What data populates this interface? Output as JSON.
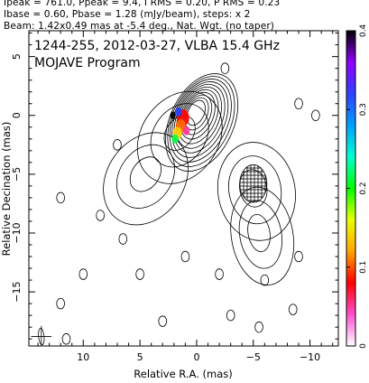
{
  "header": {
    "line1": "Ipeak = 761.0, Ppeak = 9.4, I RMS = 0.20, P RMS = 0.23",
    "line2": "Ibase = 0.60, Pbase = 1.28 (mJy/beam), steps: x 2",
    "line3": "Beam: 1.42x0.49 mas at -5.4 deg., Nat. Wgt. (no taper)"
  },
  "chart_data": {
    "type": "heatmap",
    "title": "1244-255, 2012-03-27, VLBA 15.4 GHz",
    "subtitle": "MOJAVE Program",
    "xlabel": "Relative R.A. (mas)",
    "ylabel": "Relative Decination (mas)",
    "xlim": [
      14.8,
      -12.5
    ],
    "ylim": [
      -19.6,
      7.2
    ],
    "x_ticks": [
      10,
      5,
      0,
      -5,
      -10
    ],
    "x_tick_labels": [
      "10",
      "5",
      "0",
      "−5",
      "−10"
    ],
    "y_ticks": [
      5,
      0,
      -5,
      -10,
      -15
    ],
    "y_tick_labels": [
      "5",
      "0",
      "−5",
      "−10",
      "−15"
    ],
    "colorbar": {
      "min": 0,
      "max": 0.4,
      "ticks": [
        0,
        0.1,
        0.2,
        0.3,
        0.4
      ],
      "tick_labels": [
        "0",
        "0.1",
        "0.2",
        "0.3",
        "0.4"
      ],
      "colors": [
        "#ffffff",
        "#ff4fd0",
        "#ff0000",
        "#ffa500",
        "#e8ff00",
        "#00ff00",
        "#00ffd0",
        "#00a0ff",
        "#3040ff",
        "#9000ff",
        "#000000"
      ]
    },
    "core": {
      "x": 0.1,
      "y": 0.3,
      "peak_mJy_per_beam": 761.0
    },
    "jet_components": [
      {
        "x": 1.5,
        "y": -1.5
      },
      {
        "x": 4.5,
        "y": -5.0
      },
      {
        "x": -5.0,
        "y": -6.2
      },
      {
        "x": -5.5,
        "y": -10.0
      }
    ],
    "beam": {
      "major_mas": 1.42,
      "minor_mas": 0.49,
      "pa_deg": -5.4,
      "x": 13.7,
      "y": -18.8
    },
    "contours": {
      "base_mJy_per_beam": 0.6,
      "step_factor": 2,
      "core_levels": [
        1,
        2,
        4,
        8,
        16,
        32,
        64,
        128,
        256,
        512,
        1024
      ]
    },
    "hatched_region": {
      "x": -5.0,
      "y": -5.8
    },
    "grid": false,
    "legend": "none"
  }
}
